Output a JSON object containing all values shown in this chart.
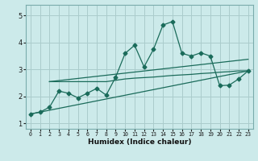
{
  "bg_color": "#cceaea",
  "grid_color": "#aacccc",
  "line_color": "#1a6b5a",
  "xlabel": "Humidex (Indice chaleur)",
  "xlim": [
    -0.5,
    23.5
  ],
  "ylim": [
    0.8,
    5.4
  ],
  "yticks": [
    1,
    2,
    3,
    4,
    5
  ],
  "xticks": [
    0,
    1,
    2,
    3,
    4,
    5,
    6,
    7,
    8,
    9,
    10,
    11,
    12,
    13,
    14,
    15,
    16,
    17,
    18,
    19,
    20,
    21,
    22,
    23
  ],
  "series1_x": [
    0,
    1,
    2,
    3,
    4,
    5,
    6,
    7,
    8,
    9,
    10,
    11,
    12,
    13,
    14,
    15,
    16,
    17,
    18,
    19,
    20,
    21,
    22,
    23
  ],
  "series1_y": [
    1.35,
    1.42,
    1.6,
    2.2,
    2.12,
    1.95,
    2.12,
    2.3,
    2.05,
    2.72,
    3.6,
    3.9,
    3.1,
    3.75,
    4.65,
    4.78,
    3.6,
    3.5,
    3.62,
    3.5,
    2.4,
    2.42,
    2.65,
    2.95
  ],
  "series2_x": [
    2,
    3,
    4,
    5,
    6,
    7,
    8,
    9,
    10,
    11,
    12,
    13,
    14,
    15,
    16,
    17,
    18,
    19,
    20,
    21,
    22,
    23
  ],
  "series2_y": [
    2.55,
    2.55,
    2.55,
    2.55,
    2.55,
    2.55,
    2.55,
    2.6,
    2.65,
    2.68,
    2.7,
    2.72,
    2.75,
    2.78,
    2.8,
    2.82,
    2.85,
    2.87,
    2.9,
    2.92,
    2.95,
    2.95
  ],
  "series3_x": [
    0,
    23
  ],
  "series3_y": [
    1.35,
    2.95
  ],
  "series4_x": [
    2,
    23
  ],
  "series4_y": [
    2.55,
    3.38
  ]
}
